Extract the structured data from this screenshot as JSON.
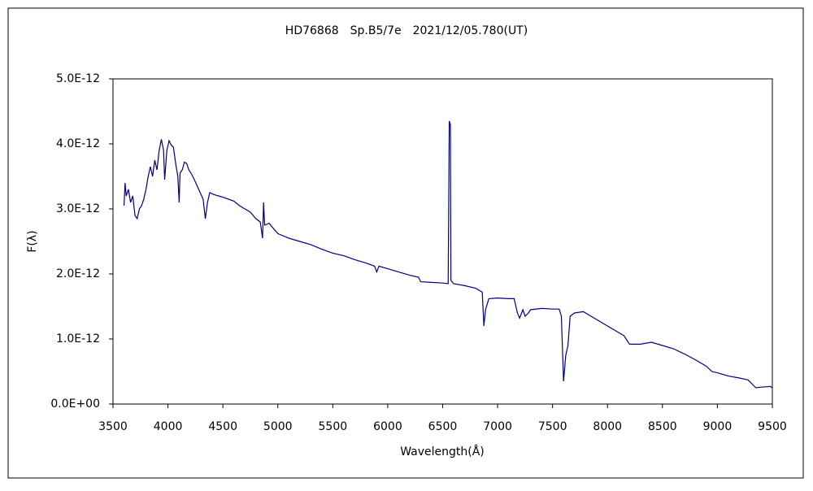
{
  "chart_data": {
    "type": "line",
    "title": "HD76868　Sp.B5/7e　2021/12/05.780(UT)",
    "x_label": "Wavelength(Å)",
    "y_label": "F(λ)",
    "xlim": [
      3500,
      9500
    ],
    "xticks": [
      3500,
      4000,
      4500,
      5000,
      5500,
      6000,
      6500,
      7000,
      7500,
      8000,
      8500,
      9000,
      9500
    ],
    "ylim": [
      0,
      5e-12
    ],
    "yticks": [
      {
        "value": 0,
        "label": "0.0E+00"
      },
      {
        "value": 1e-12,
        "label": "1.0E-12"
      },
      {
        "value": 2e-12,
        "label": "2.0E-12"
      },
      {
        "value": 3e-12,
        "label": "3.0E-12"
      },
      {
        "value": 4e-12,
        "label": "4.0E-12"
      },
      {
        "value": 5e-12,
        "label": "5.0E-12"
      }
    ],
    "grid": false,
    "x": [
      3600,
      3610,
      3620,
      3640,
      3660,
      3680,
      3700,
      3720,
      3740,
      3760,
      3780,
      3800,
      3820,
      3840,
      3860,
      3880,
      3900,
      3920,
      3940,
      3960,
      3970,
      3990,
      4010,
      4030,
      4050,
      4070,
      4090,
      4102,
      4110,
      4130,
      4150,
      4170,
      4190,
      4210,
      4240,
      4280,
      4320,
      4340,
      4360,
      4380,
      4420,
      4460,
      4500,
      4550,
      4600,
      4650,
      4700,
      4750,
      4800,
      4840,
      4861,
      4870,
      4880,
      4920,
      4960,
      5000,
      5100,
      5200,
      5300,
      5400,
      5500,
      5600,
      5700,
      5800,
      5880,
      5900,
      5920,
      6000,
      6100,
      6200,
      6280,
      6300,
      6400,
      6500,
      6550,
      6560,
      6570,
      6575,
      6600,
      6700,
      6800,
      6860,
      6875,
      6890,
      6920,
      7000,
      7100,
      7150,
      7180,
      7200,
      7230,
      7250,
      7280,
      7300,
      7400,
      7500,
      7560,
      7580,
      7600,
      7620,
      7640,
      7660,
      7700,
      7780,
      7850,
      7900,
      8000,
      8100,
      8150,
      8200,
      8300,
      8400,
      8500,
      8600,
      8700,
      8800,
      8900,
      8950,
      9000,
      9100,
      9200,
      9280,
      9320,
      9350,
      9400,
      9480,
      9500
    ],
    "series": [
      {
        "color": "#000080",
        "values": [
          3.05e-12,
          3.4e-12,
          3.2e-12,
          3.3e-12,
          3.1e-12,
          3.2e-12,
          2.9e-12,
          2.85e-12,
          3e-12,
          3.05e-12,
          3.15e-12,
          3.3e-12,
          3.5e-12,
          3.65e-12,
          3.5e-12,
          3.75e-12,
          3.6e-12,
          3.9e-12,
          4.07e-12,
          3.9e-12,
          3.45e-12,
          3.9e-12,
          4.05e-12,
          3.98e-12,
          3.95e-12,
          3.7e-12,
          3.5e-12,
          3.1e-12,
          3.55e-12,
          3.6e-12,
          3.72e-12,
          3.7e-12,
          3.6e-12,
          3.55e-12,
          3.45e-12,
          3.3e-12,
          3.15e-12,
          2.85e-12,
          3.1e-12,
          3.25e-12,
          3.22e-12,
          3.2e-12,
          3.18e-12,
          3.15e-12,
          3.12e-12,
          3.05e-12,
          3e-12,
          2.95e-12,
          2.85e-12,
          2.8e-12,
          2.55e-12,
          3.1e-12,
          2.75e-12,
          2.78e-12,
          2.7e-12,
          2.62e-12,
          2.55e-12,
          2.5e-12,
          2.45e-12,
          2.38e-12,
          2.32e-12,
          2.28e-12,
          2.22e-12,
          2.17e-12,
          2.12e-12,
          2.03e-12,
          2.12e-12,
          2.08e-12,
          2.03e-12,
          1.98e-12,
          1.95e-12,
          1.88e-12,
          1.87e-12,
          1.86e-12,
          1.85e-12,
          4.35e-12,
          4.3e-12,
          1.9e-12,
          1.85e-12,
          1.82e-12,
          1.78e-12,
          1.72e-12,
          1.2e-12,
          1.45e-12,
          1.62e-12,
          1.63e-12,
          1.62e-12,
          1.62e-12,
          1.4e-12,
          1.32e-12,
          1.45e-12,
          1.35e-12,
          1.4e-12,
          1.45e-12,
          1.47e-12,
          1.46e-12,
          1.46e-12,
          1.35e-12,
          3.5e-13,
          7.5e-13,
          9e-13,
          1.35e-12,
          1.4e-12,
          1.42e-12,
          1.35e-12,
          1.3e-12,
          1.2e-12,
          1.1e-12,
          1.05e-12,
          9.2e-13,
          9.2e-13,
          9.5e-13,
          9e-13,
          8.5e-13,
          7.7e-13,
          6.8e-13,
          5.8e-13,
          5e-13,
          4.8e-13,
          4.3e-13,
          4e-13,
          3.7e-13,
          3e-13,
          2.5e-13,
          2.6e-13,
          2.7e-13,
          2.5e-13
        ]
      }
    ]
  }
}
